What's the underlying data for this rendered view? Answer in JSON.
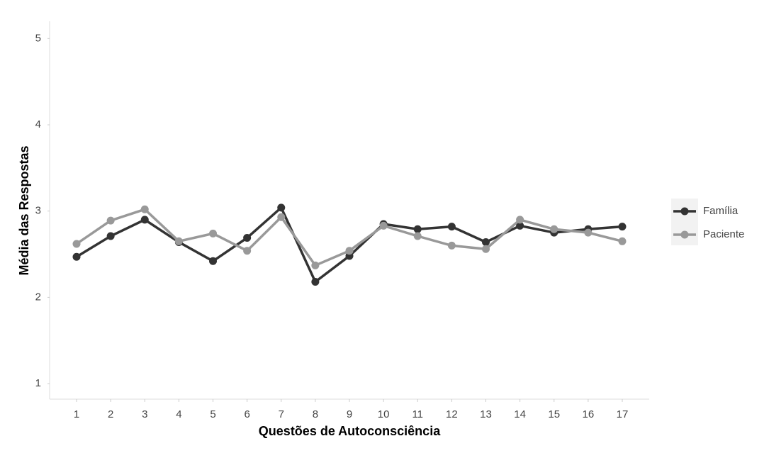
{
  "chart_data": {
    "type": "line",
    "x_label": "Questões de Autoconsciência",
    "y_label": "Média das Respostas",
    "categories": [
      "1",
      "2",
      "3",
      "4",
      "5",
      "6",
      "7",
      "8",
      "9",
      "10",
      "11",
      "12",
      "13",
      "14",
      "15",
      "16",
      "17"
    ],
    "series": [
      {
        "name": "Família",
        "color": "#333333",
        "values": [
          2.47,
          2.71,
          2.9,
          2.64,
          2.42,
          2.69,
          3.04,
          2.18,
          2.48,
          2.85,
          2.79,
          2.82,
          2.64,
          2.83,
          2.75,
          2.79,
          2.82
        ]
      },
      {
        "name": "Paciente",
        "color": "#999999",
        "values": [
          2.62,
          2.89,
          3.02,
          2.65,
          2.74,
          2.54,
          2.93,
          2.37,
          2.54,
          2.83,
          2.71,
          2.6,
          2.56,
          2.9,
          2.79,
          2.75,
          2.65
        ]
      }
    ],
    "ylim": [
      0.82,
      5.2
    ],
    "yticks": [
      1,
      2,
      3,
      4,
      5
    ],
    "legend": "right"
  }
}
